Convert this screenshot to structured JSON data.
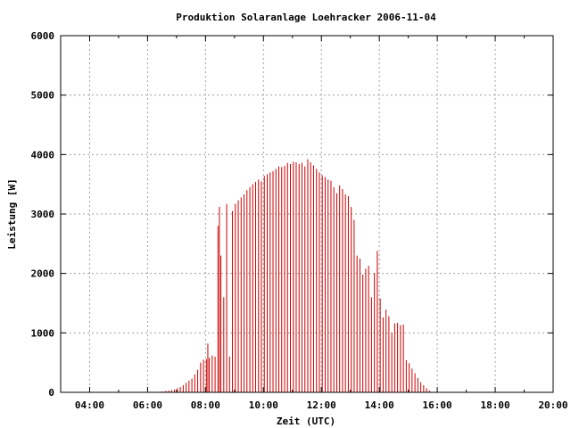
{
  "chart_data": {
    "type": "bar",
    "title": "Produktion Solaranlage Loehracker 2006-11-04",
    "xlabel": "Zeit (UTC)",
    "ylabel": "Leistung [W]",
    "xlim_hours": [
      3,
      20
    ],
    "ylim": [
      0,
      6000
    ],
    "x_ticks": [
      {
        "h": 4,
        "label": "04:00"
      },
      {
        "h": 6,
        "label": "06:00"
      },
      {
        "h": 8,
        "label": "08:00"
      },
      {
        "h": 10,
        "label": "10:00"
      },
      {
        "h": 12,
        "label": "12:00"
      },
      {
        "h": 14,
        "label": "14:00"
      },
      {
        "h": 16,
        "label": "16:00"
      },
      {
        "h": 18,
        "label": "18:00"
      },
      {
        "h": 20,
        "label": "20:00"
      }
    ],
    "y_ticks": [
      {
        "v": 0,
        "label": "0"
      },
      {
        "v": 1000,
        "label": "1000"
      },
      {
        "v": 2000,
        "label": "2000"
      },
      {
        "v": 3000,
        "label": "3000"
      },
      {
        "v": 4000,
        "label": "4000"
      },
      {
        "v": 5000,
        "label": "5000"
      },
      {
        "v": 6000,
        "label": "6000"
      }
    ],
    "grid": true,
    "bar_color": "#cc0000",
    "points": [
      [
        6.43,
        10
      ],
      [
        6.53,
        15
      ],
      [
        6.63,
        25
      ],
      [
        6.73,
        30
      ],
      [
        6.83,
        40
      ],
      [
        6.93,
        50
      ],
      [
        7.03,
        70
      ],
      [
        7.13,
        90
      ],
      [
        7.23,
        120
      ],
      [
        7.33,
        160
      ],
      [
        7.43,
        200
      ],
      [
        7.53,
        230
      ],
      [
        7.63,
        300
      ],
      [
        7.73,
        380
      ],
      [
        7.83,
        500
      ],
      [
        7.93,
        550
      ],
      [
        8.03,
        560
      ],
      [
        8.08,
        820
      ],
      [
        8.13,
        580
      ],
      [
        8.23,
        620
      ],
      [
        8.33,
        600
      ],
      [
        8.43,
        2800
      ],
      [
        8.48,
        3120
      ],
      [
        8.53,
        2300
      ],
      [
        8.63,
        1600
      ],
      [
        8.73,
        3170
      ],
      [
        8.83,
        600
      ],
      [
        8.93,
        3050
      ],
      [
        9.03,
        3170
      ],
      [
        9.13,
        3230
      ],
      [
        9.23,
        3280
      ],
      [
        9.33,
        3330
      ],
      [
        9.43,
        3400
      ],
      [
        9.53,
        3450
      ],
      [
        9.63,
        3500
      ],
      [
        9.73,
        3540
      ],
      [
        9.83,
        3580
      ],
      [
        9.93,
        3550
      ],
      [
        10.03,
        3640
      ],
      [
        10.13,
        3670
      ],
      [
        10.23,
        3700
      ],
      [
        10.33,
        3720
      ],
      [
        10.43,
        3760
      ],
      [
        10.53,
        3800
      ],
      [
        10.63,
        3790
      ],
      [
        10.73,
        3810
      ],
      [
        10.83,
        3860
      ],
      [
        10.93,
        3840
      ],
      [
        11.03,
        3880
      ],
      [
        11.13,
        3870
      ],
      [
        11.23,
        3840
      ],
      [
        11.33,
        3860
      ],
      [
        11.43,
        3800
      ],
      [
        11.53,
        3920
      ],
      [
        11.63,
        3870
      ],
      [
        11.73,
        3820
      ],
      [
        11.83,
        3760
      ],
      [
        11.93,
        3700
      ],
      [
        12.03,
        3650
      ],
      [
        12.13,
        3620
      ],
      [
        12.23,
        3580
      ],
      [
        12.33,
        3560
      ],
      [
        12.43,
        3450
      ],
      [
        12.53,
        3350
      ],
      [
        12.63,
        3480
      ],
      [
        12.73,
        3420
      ],
      [
        12.83,
        3330
      ],
      [
        12.93,
        3300
      ],
      [
        13.03,
        3120
      ],
      [
        13.13,
        2900
      ],
      [
        13.23,
        2300
      ],
      [
        13.33,
        2250
      ],
      [
        13.43,
        1980
      ],
      [
        13.53,
        2080
      ],
      [
        13.63,
        2130
      ],
      [
        13.73,
        1600
      ],
      [
        13.83,
        2010
      ],
      [
        13.93,
        2380
      ],
      [
        14.03,
        1580
      ],
      [
        14.13,
        1260
      ],
      [
        14.23,
        1390
      ],
      [
        14.33,
        1280
      ],
      [
        14.43,
        1000
      ],
      [
        14.53,
        1160
      ],
      [
        14.63,
        1170
      ],
      [
        14.73,
        1130
      ],
      [
        14.83,
        1140
      ],
      [
        14.93,
        540
      ],
      [
        15.03,
        490
      ],
      [
        15.13,
        400
      ],
      [
        15.23,
        320
      ],
      [
        15.33,
        240
      ],
      [
        15.43,
        170
      ],
      [
        15.53,
        120
      ],
      [
        15.63,
        70
      ],
      [
        15.73,
        30
      ]
    ]
  }
}
